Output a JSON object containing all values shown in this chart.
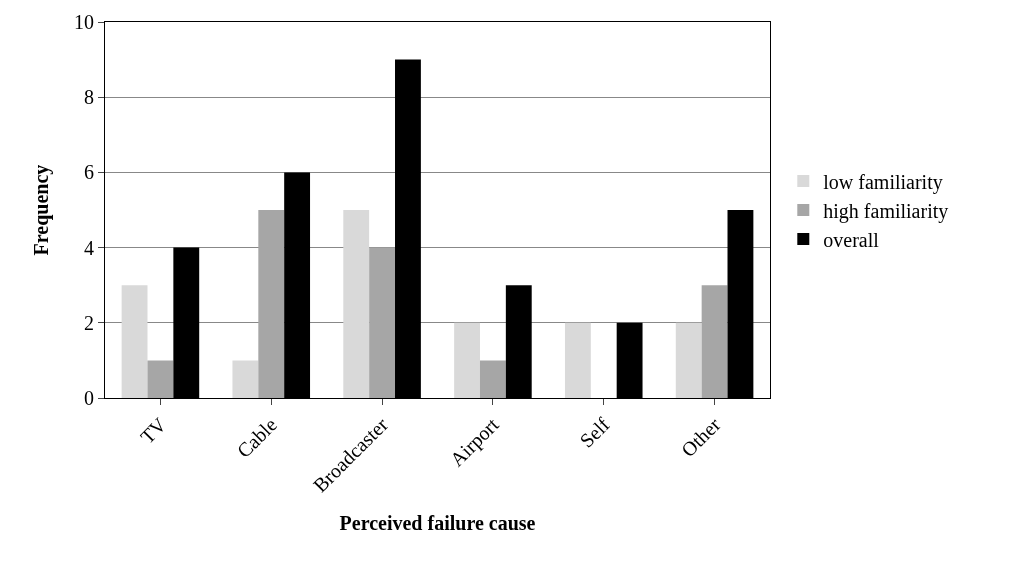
{
  "chart_data": {
    "type": "bar",
    "xlabel": "Perceived failure cause",
    "ylabel": "Frequency",
    "categories": [
      "TV",
      "Cable",
      "Broadcaster",
      "Airport",
      "Self",
      "Other"
    ],
    "series": [
      {
        "name": "low familiarity",
        "color": "#d9d9d9",
        "values": [
          3,
          1,
          5,
          2,
          2,
          2
        ]
      },
      {
        "name": "high familiarity",
        "color": "#a6a6a6",
        "values": [
          1,
          5,
          4,
          1,
          0,
          3
        ]
      },
      {
        "name": "overall",
        "color": "#000000",
        "values": [
          4,
          6,
          9,
          3,
          2,
          5
        ]
      }
    ],
    "ylim": [
      0,
      10
    ],
    "yticks": [
      0,
      2,
      4,
      6,
      8,
      10
    ],
    "grid": "y",
    "legend": "right"
  }
}
